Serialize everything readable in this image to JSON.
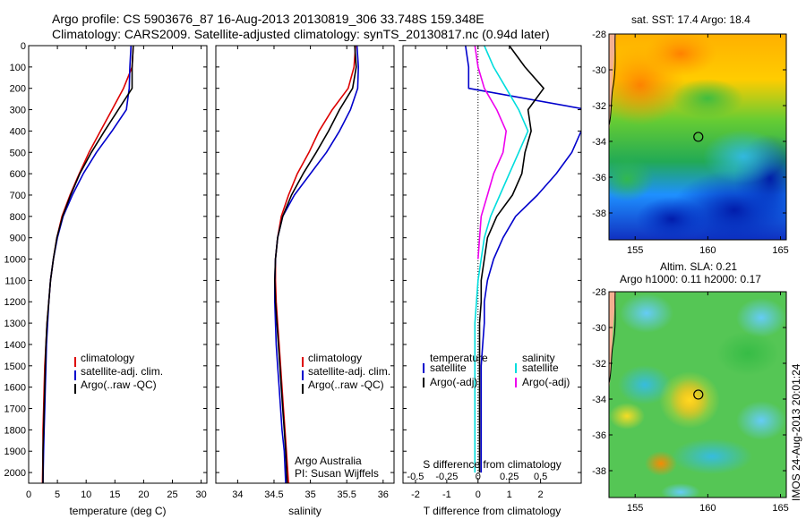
{
  "header": {
    "line1": "Argo profile: CS 5903676_87 16-Aug-2013 20130819_306 33.748S 159.348E",
    "line2": "Climatology: CARS2009. Satellite-adjusted climatology: synTS_20130817.nc (0.94d later)"
  },
  "colors": {
    "climatology": "#dd0000",
    "satellite": "#0000cc",
    "argo": "#000000",
    "salinity_satellite": "#00dddd",
    "salinity_argo": "#ee00ee"
  },
  "depth_axis": {
    "ticks": [
      "0",
      "100",
      "200",
      "300",
      "400",
      "500",
      "600",
      "700",
      "800",
      "900",
      "1000",
      "1100",
      "1200",
      "1300",
      "1400",
      "1500",
      "1600",
      "1700",
      "1800",
      "1900",
      "2000"
    ]
  },
  "legend": {
    "climatology": "climatology",
    "satellite_adj": "satellite-adj. clim.",
    "argo": "Argo(..raw -QC)",
    "diff_temperature": "temperature",
    "diff_salinity": "salinity",
    "diff_satellite": "satellite",
    "diff_argo": "Argo(-adj)"
  },
  "credits": {
    "org": "Argo Australia",
    "pi": "PI: Susan Wijffels"
  },
  "footer": {
    "stamp": "IMOS 24-Aug-2013 20:01:24"
  },
  "chart_data": [
    {
      "type": "line",
      "name": "temperature profile",
      "xlabel": "temperature (deg C)",
      "ylabel": "",
      "xlim": [
        0,
        31
      ],
      "ylim": [
        2050,
        0
      ],
      "xticks": [
        "0",
        "5",
        "10",
        "15",
        "20",
        "25",
        "30"
      ],
      "xtick_values": [
        0,
        5,
        10,
        15,
        20,
        25,
        30
      ],
      "series": [
        {
          "name": "climatology",
          "color": "#dd0000",
          "x": [
            18.2,
            18.0,
            16.5,
            14.5,
            12.5,
            10.5,
            8.8,
            7.2,
            5.8,
            4.9,
            4.3,
            3.8,
            3.5,
            3.2,
            3.0,
            2.8,
            2.7,
            2.6,
            2.5,
            2.5,
            2.4
          ],
          "y": [
            0,
            100,
            200,
            300,
            400,
            500,
            600,
            700,
            800,
            900,
            1000,
            1100,
            1200,
            1300,
            1400,
            1500,
            1600,
            1700,
            1800,
            1900,
            2050
          ]
        },
        {
          "name": "satellite-adj. clim.",
          "color": "#0000cc",
          "x": [
            17.8,
            17.6,
            17.5,
            17.0,
            14.5,
            11.8,
            9.5,
            7.6,
            6.0,
            5.0,
            4.3,
            3.8,
            3.5,
            3.3,
            3.1,
            3.0,
            2.9,
            2.8,
            2.7,
            2.6,
            2.5
          ],
          "y": [
            0,
            100,
            200,
            300,
            400,
            500,
            600,
            700,
            800,
            900,
            1000,
            1100,
            1200,
            1300,
            1400,
            1500,
            1600,
            1700,
            1800,
            1900,
            2050
          ]
        },
        {
          "name": "Argo(..raw -QC)",
          "color": "#000000",
          "x": [
            18.2,
            18.0,
            18.0,
            15.6,
            13.2,
            10.9,
            8.9,
            7.3,
            5.9,
            4.9,
            4.3,
            3.8,
            3.5,
            3.2,
            3.0,
            2.9,
            2.8,
            2.7,
            2.6,
            2.5,
            2.5
          ],
          "y": [
            0,
            100,
            200,
            300,
            400,
            500,
            600,
            700,
            800,
            900,
            1000,
            1100,
            1200,
            1300,
            1400,
            1500,
            1600,
            1700,
            1800,
            1900,
            2050
          ]
        }
      ]
    },
    {
      "type": "line",
      "name": "salinity profile",
      "xlabel": "salinity",
      "ylabel": "",
      "xlim": [
        33.7,
        36.15
      ],
      "ylim": [
        2050,
        0
      ],
      "xticks": [
        "34",
        "34.5",
        "35",
        "35.5",
        "36"
      ],
      "xtick_values": [
        34,
        34.5,
        35,
        35.5,
        36
      ],
      "series": [
        {
          "name": "climatology",
          "color": "#dd0000",
          "x": [
            35.62,
            35.6,
            35.52,
            35.3,
            35.12,
            34.98,
            34.82,
            34.7,
            34.6,
            34.55,
            34.52,
            34.52,
            34.53,
            34.55,
            34.57,
            34.59,
            34.61,
            34.63,
            34.65,
            34.67,
            34.7
          ],
          "y": [
            0,
            100,
            200,
            300,
            400,
            500,
            600,
            700,
            800,
            900,
            1000,
            1100,
            1200,
            1300,
            1400,
            1500,
            1600,
            1700,
            1800,
            1900,
            2050
          ]
        },
        {
          "name": "satellite-adj. clim.",
          "color": "#0000cc",
          "x": [
            35.64,
            35.66,
            35.65,
            35.55,
            35.4,
            35.22,
            35.0,
            34.78,
            34.62,
            34.55,
            34.52,
            34.51,
            34.51,
            34.52,
            34.53,
            34.55,
            34.57,
            34.59,
            34.61,
            34.64,
            34.66
          ],
          "y": [
            0,
            100,
            200,
            300,
            400,
            500,
            600,
            700,
            800,
            900,
            1000,
            1100,
            1200,
            1300,
            1400,
            1500,
            1600,
            1700,
            1800,
            1900,
            2050
          ]
        },
        {
          "name": "Argo(..raw -QC)",
          "color": "#000000",
          "x": [
            35.61,
            35.63,
            35.58,
            35.4,
            35.25,
            35.08,
            34.9,
            34.74,
            34.62,
            34.55,
            34.52,
            34.51,
            34.52,
            34.54,
            34.56,
            34.58,
            34.6,
            34.62,
            34.64,
            34.66,
            34.68
          ],
          "y": [
            0,
            100,
            200,
            300,
            400,
            500,
            600,
            700,
            800,
            900,
            1000,
            1100,
            1200,
            1300,
            1400,
            1500,
            1600,
            1700,
            1800,
            1900,
            2050
          ]
        }
      ]
    },
    {
      "type": "line",
      "name": "difference from climatology",
      "xlabel": "T difference from climatology",
      "x2label": "S difference from climatology",
      "xlim": [
        -2.4,
        3.3
      ],
      "ylim": [
        2050,
        0
      ],
      "xticks": [
        "-2",
        "-1",
        "0",
        "1",
        "2"
      ],
      "xtick_values": [
        -2,
        -1,
        0,
        1,
        2
      ],
      "x2ticks": [
        "-0.5",
        "-0.25",
        "0",
        "0.25",
        "0.5"
      ],
      "x2tick_positions": [
        -2,
        -1,
        0,
        1,
        2
      ],
      "series": [
        {
          "name": "temperature satellite",
          "color": "#0000cc",
          "x": [
            -0.4,
            -0.3,
            -0.3,
            3.5
          ],
          "y": [
            0,
            100,
            200,
            300
          ]
        },
        {
          "name": "temperature satellite deep",
          "color": "#0000cc",
          "x": [
            3.3,
            3.0,
            2.5,
            1.9,
            1.2,
            0.8,
            0.5,
            0.3,
            0.2,
            0.2,
            0.15,
            0.1,
            0.1,
            0.1,
            0.1,
            0.1
          ],
          "y": [
            400,
            500,
            600,
            700,
            800,
            900,
            1000,
            1100,
            1200,
            1300,
            1400,
            1500,
            1600,
            1700,
            1800,
            2000
          ]
        },
        {
          "name": "temperature Argo(-adj)",
          "color": "#000000",
          "x": [
            1.0,
            1.5,
            2.1,
            1.6,
            1.7,
            1.5,
            1.4,
            1.1,
            0.6,
            0.3,
            0.2,
            0.1,
            0.1,
            0.05,
            0.05,
            0.05,
            0.05
          ],
          "y": [
            0,
            100,
            200,
            300,
            400,
            500,
            600,
            700,
            800,
            900,
            1000,
            1100,
            1200,
            1300,
            1500,
            1700,
            2000
          ]
        },
        {
          "name": "salinity satellite",
          "color": "#00dddd",
          "x": [
            0.2,
            0.5,
            0.9,
            1.3,
            1.6,
            1.3,
            1.0,
            0.7,
            0.4,
            0.2,
            0.1,
            0.0,
            -0.1,
            -0.1,
            -0.1,
            -0.1
          ],
          "y": [
            0,
            100,
            200,
            300,
            400,
            500,
            600,
            700,
            800,
            900,
            1000,
            1100,
            1300,
            1500,
            1700,
            2000
          ]
        },
        {
          "name": "salinity Argo(-adj)",
          "color": "#ee00ee",
          "x": [
            -0.1,
            0.0,
            0.2,
            0.6,
            0.9,
            0.8,
            0.5,
            0.3,
            0.1,
            0.05,
            0.0
          ],
          "y": [
            0,
            100,
            200,
            300,
            400,
            500,
            600,
            700,
            800,
            900,
            1000
          ]
        }
      ]
    }
  ],
  "map_sst": {
    "title": "sat. SST: 17.4  Argo: 18.4",
    "yticks": [
      "-28",
      "-30",
      "-32",
      "-34",
      "-36",
      "-38"
    ],
    "ytick_values": [
      -28,
      -30,
      -32,
      -34,
      -36,
      -38
    ],
    "xticks": [
      "155",
      "160",
      "165"
    ],
    "xtick_values": [
      155,
      160,
      165
    ],
    "lon_range": [
      153.2,
      165.4
    ],
    "lat_range": [
      -28,
      -39.5
    ],
    "float_position": {
      "lon": 159.348,
      "lat": -33.748
    }
  },
  "map_sla": {
    "title1": "Altim. SLA: 0.21",
    "title2": "Argo h1000: 0.11 h2000: 0.17",
    "yticks": [
      "-28",
      "-30",
      "-32",
      "-34",
      "-36",
      "-38"
    ],
    "ytick_values": [
      -28,
      -30,
      -32,
      -34,
      -36,
      -38
    ],
    "xticks": [
      "155",
      "160",
      "165"
    ],
    "xtick_values": [
      155,
      160,
      165
    ],
    "lon_range": [
      153.2,
      165.4
    ],
    "lat_range": [
      -28,
      -39.5
    ],
    "float_position": {
      "lon": 159.348,
      "lat": -33.748
    }
  }
}
